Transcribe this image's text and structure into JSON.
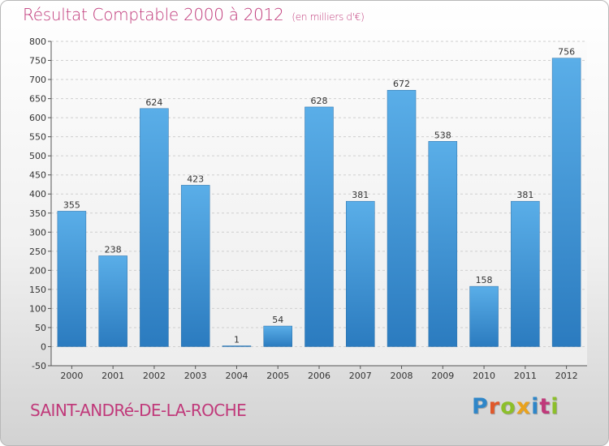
{
  "header": {
    "title": "Résultat Comptable 2000 à 2012",
    "unit": "(en milliers d'€)"
  },
  "footer": {
    "town": "SAINT-ANDRé-DE-LA-ROCHE",
    "logo": "Proxiti",
    "logo_letters": [
      {
        "ch": "P",
        "color": "#2f86c8"
      },
      {
        "ch": "r",
        "color": "#e0582a"
      },
      {
        "ch": "o",
        "color": "#8cbf2a"
      },
      {
        "ch": "x",
        "color": "#e9a21d"
      },
      {
        "ch": "i",
        "color": "#2f86c8"
      },
      {
        "ch": "t",
        "color": "#c0397a"
      },
      {
        "ch": "i",
        "color": "#8cbf2a"
      }
    ]
  },
  "colors": {
    "accent": "#c0397a",
    "bar_top": "#5aaee8",
    "bar_bottom": "#2b7bbf"
  },
  "chart_data": {
    "type": "bar",
    "title": "Résultat Comptable 2000 à 2012",
    "subtitle": "(en milliers d'€)",
    "categories": [
      "2000",
      "2001",
      "2002",
      "2003",
      "2004",
      "2005",
      "2006",
      "2007",
      "2008",
      "2009",
      "2010",
      "2011",
      "2012"
    ],
    "values": [
      355,
      238,
      624,
      423,
      1,
      54,
      628,
      381,
      672,
      538,
      158,
      381,
      756
    ],
    "xlabel": "",
    "ylabel": "",
    "ylim": [
      -50,
      800
    ],
    "yticks": [
      -50,
      0,
      50,
      100,
      150,
      200,
      250,
      300,
      350,
      400,
      450,
      500,
      550,
      600,
      650,
      700,
      750,
      800
    ],
    "grid": true,
    "legend": "none"
  }
}
